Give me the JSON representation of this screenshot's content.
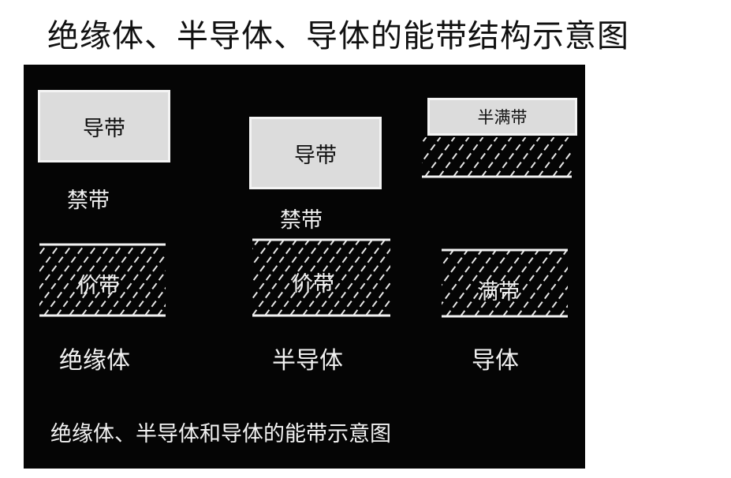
{
  "title": "绝缘体、半导体、导体的能带结构示意图",
  "colors": {
    "panel": "#050505",
    "box": "#dcdcdc",
    "text_light": "#f2f2f2"
  },
  "columns": [
    {
      "conduction": "导带",
      "gap": "禁带",
      "valence": "价带",
      "name": "绝缘体"
    },
    {
      "conduction": "导带",
      "gap": "禁带",
      "valence": "价带",
      "name": "半导体"
    },
    {
      "half_filled": "半满带",
      "full": "满带",
      "name": "导体"
    }
  ],
  "caption": "绝缘体、半导体和导体的能带示意图"
}
